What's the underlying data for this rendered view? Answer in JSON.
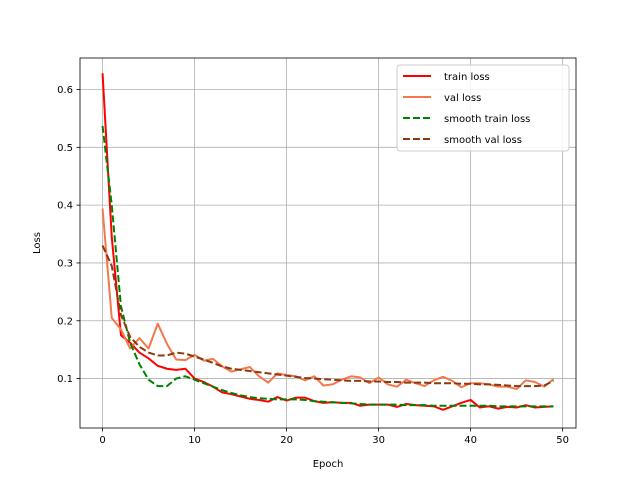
{
  "chart_data": {
    "type": "line",
    "title": "",
    "xlabel": "Epoch",
    "ylabel": "Loss",
    "xlim": [
      -2.45,
      51.45
    ],
    "ylim": [
      0.0145,
      0.6545
    ],
    "xticks": [
      0,
      10,
      20,
      30,
      40,
      50
    ],
    "yticks": [
      0.1,
      0.2,
      0.3,
      0.4,
      0.5,
      0.6
    ],
    "xtick_labels": [
      "0",
      "10",
      "20",
      "30",
      "40",
      "50"
    ],
    "ytick_labels": [
      "0.1",
      "0.2",
      "0.3",
      "0.4",
      "0.5",
      "0.6"
    ],
    "grid": true,
    "legend_position": "top-right",
    "x": [
      0,
      1,
      2,
      3,
      4,
      5,
      6,
      7,
      8,
      9,
      10,
      11,
      12,
      13,
      14,
      15,
      16,
      17,
      18,
      19,
      20,
      21,
      22,
      23,
      24,
      25,
      26,
      27,
      28,
      29,
      30,
      31,
      32,
      33,
      34,
      35,
      36,
      37,
      38,
      39,
      40,
      41,
      42,
      43,
      44,
      45,
      46,
      47,
      48,
      49
    ],
    "series": [
      {
        "name": "train loss",
        "color": "#ff0000",
        "style": "solid",
        "values": [
          0.628,
          0.345,
          0.175,
          0.162,
          0.145,
          0.135,
          0.122,
          0.117,
          0.115,
          0.117,
          0.1,
          0.094,
          0.086,
          0.076,
          0.073,
          0.069,
          0.065,
          0.063,
          0.06,
          0.068,
          0.062,
          0.067,
          0.067,
          0.061,
          0.058,
          0.059,
          0.058,
          0.058,
          0.053,
          0.055,
          0.055,
          0.055,
          0.051,
          0.056,
          0.054,
          0.053,
          0.052,
          0.046,
          0.052,
          0.058,
          0.063,
          0.05,
          0.052,
          0.048,
          0.051,
          0.05,
          0.054,
          0.05,
          0.051,
          0.052
        ]
      },
      {
        "name": "val loss",
        "color": "#f4784b",
        "style": "solid",
        "values": [
          0.394,
          0.205,
          0.185,
          0.152,
          0.17,
          0.152,
          0.195,
          0.16,
          0.133,
          0.132,
          0.141,
          0.131,
          0.134,
          0.121,
          0.112,
          0.116,
          0.12,
          0.104,
          0.093,
          0.109,
          0.106,
          0.104,
          0.097,
          0.104,
          0.088,
          0.09,
          0.098,
          0.104,
          0.102,
          0.092,
          0.102,
          0.09,
          0.086,
          0.098,
          0.092,
          0.087,
          0.097,
          0.103,
          0.096,
          0.085,
          0.092,
          0.092,
          0.09,
          0.086,
          0.086,
          0.082,
          0.097,
          0.094,
          0.086,
          0.099
        ]
      },
      {
        "name": "smooth train loss",
        "color": "#008000",
        "style": "dashed",
        "values": [
          0.537,
          0.4,
          0.225,
          0.162,
          0.125,
          0.098,
          0.087,
          0.087,
          0.1,
          0.104,
          0.098,
          0.092,
          0.086,
          0.08,
          0.075,
          0.071,
          0.068,
          0.066,
          0.065,
          0.064,
          0.064,
          0.064,
          0.063,
          0.061,
          0.06,
          0.059,
          0.058,
          0.057,
          0.056,
          0.055,
          0.055,
          0.055,
          0.055,
          0.054,
          0.054,
          0.054,
          0.053,
          0.053,
          0.053,
          0.053,
          0.053,
          0.053,
          0.053,
          0.052,
          0.052,
          0.052,
          0.052,
          0.052,
          0.052,
          0.052
        ]
      },
      {
        "name": "smooth val loss",
        "color": "#8b3a0f",
        "style": "dashed",
        "values": [
          0.33,
          0.295,
          0.21,
          0.172,
          0.155,
          0.145,
          0.14,
          0.14,
          0.145,
          0.143,
          0.138,
          0.133,
          0.127,
          0.121,
          0.117,
          0.115,
          0.113,
          0.111,
          0.109,
          0.107,
          0.105,
          0.103,
          0.101,
          0.1,
          0.099,
          0.098,
          0.097,
          0.096,
          0.096,
          0.095,
          0.095,
          0.094,
          0.094,
          0.093,
          0.093,
          0.093,
          0.092,
          0.092,
          0.092,
          0.091,
          0.091,
          0.09,
          0.09,
          0.089,
          0.088,
          0.087,
          0.087,
          0.087,
          0.088,
          0.096
        ]
      }
    ]
  }
}
